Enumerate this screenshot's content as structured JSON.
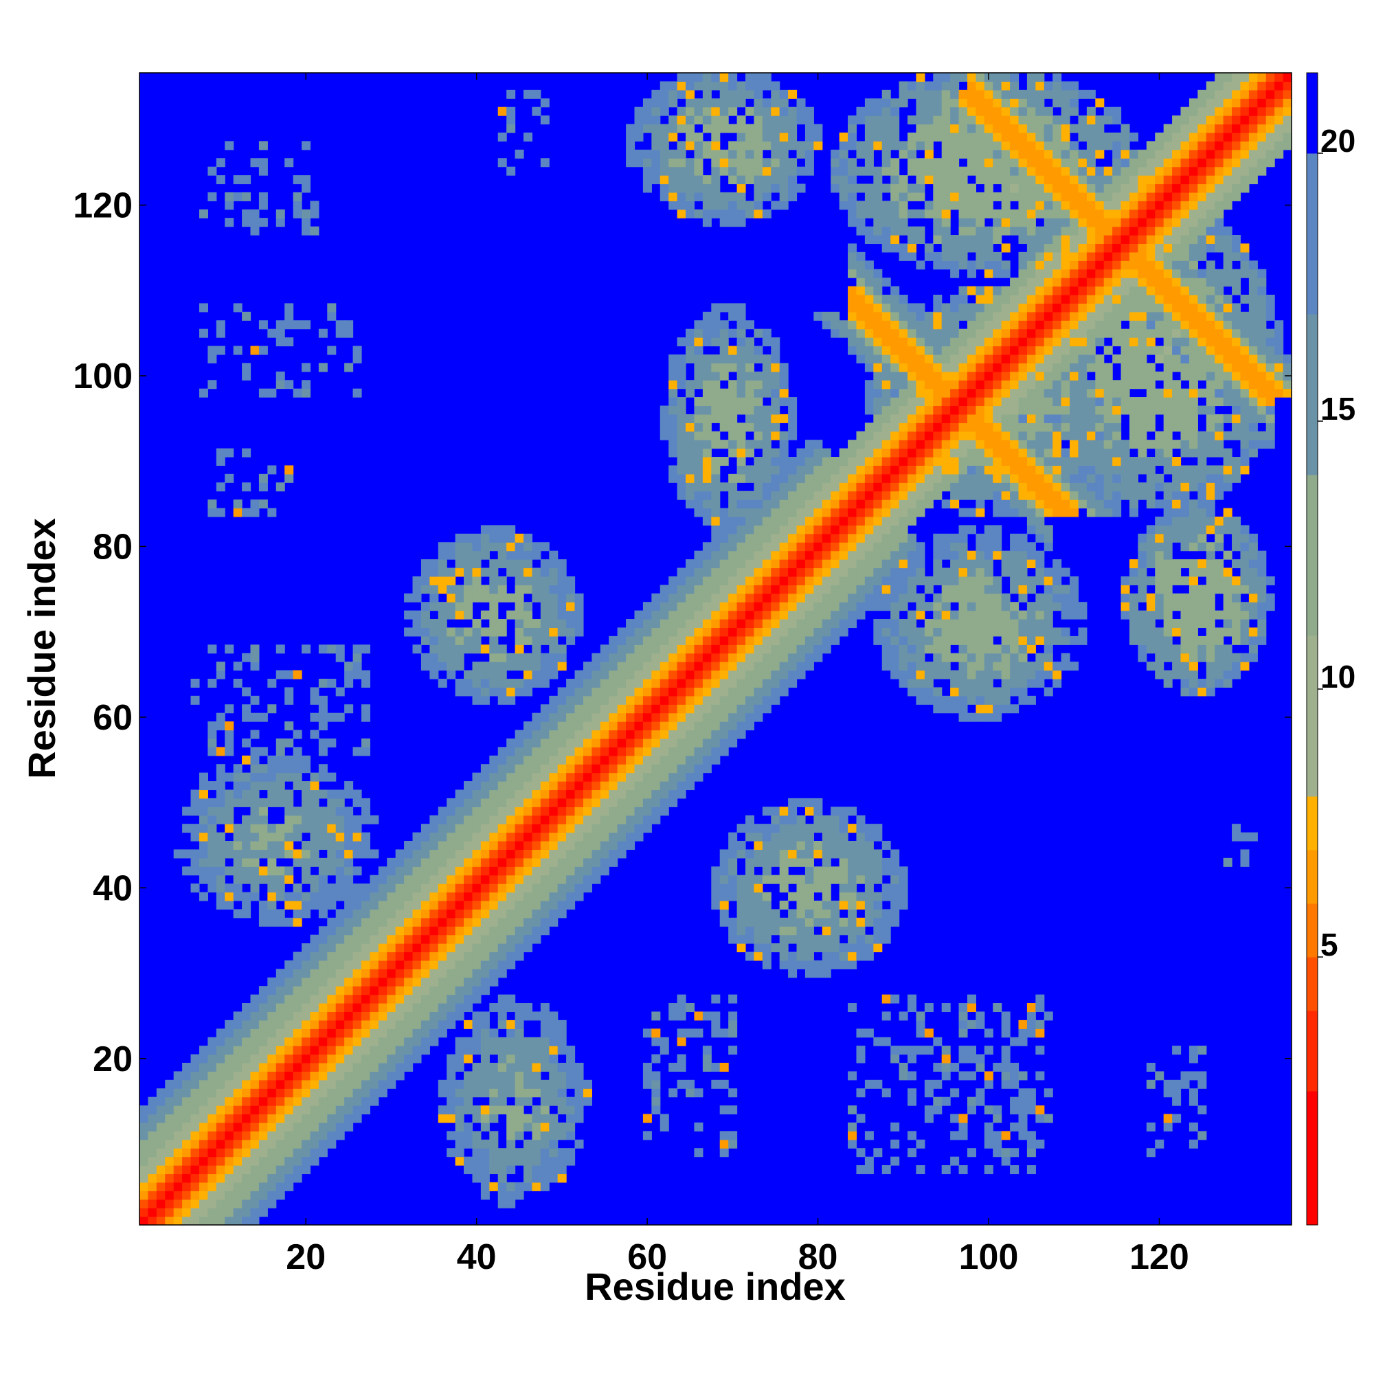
{
  "chart_data": {
    "type": "heatmap",
    "title": "",
    "xlabel": "Residue index",
    "ylabel": "Residue index",
    "n_residues": 135,
    "xlim": [
      0.5,
      135.5
    ],
    "ylim": [
      0.5,
      135.5
    ],
    "x_ticks": [
      20,
      40,
      60,
      80,
      100,
      120
    ],
    "y_ticks": [
      20,
      40,
      60,
      80,
      100,
      120
    ],
    "colorbar": {
      "ticks": [
        5,
        10,
        15,
        20
      ],
      "range": [
        0,
        21.5
      ],
      "levels": [
        {
          "max": 2.5,
          "color": "#ff0000"
        },
        {
          "max": 4.0,
          "color": "#ff2a00"
        },
        {
          "max": 5.0,
          "color": "#ff5000"
        },
        {
          "max": 6.0,
          "color": "#ff7800"
        },
        {
          "max": 7.0,
          "color": "#ff9a00"
        },
        {
          "max": 8.0,
          "color": "#ffb000"
        },
        {
          "max": 11.0,
          "color": "#9fb08e"
        },
        {
          "max": 14.0,
          "color": "#8fab8c"
        },
        {
          "max": 17.0,
          "color": "#6b93a8"
        },
        {
          "max": 20.0,
          "color": "#5b86c2"
        },
        {
          "max": 99.0,
          "color": "#0000ff"
        }
      ]
    },
    "background_value": 21,
    "diagonal_band": {
      "profile": [
        1.5,
        3.5,
        5.0,
        6.5,
        7.5,
        8.5,
        10.0,
        11.5,
        13.0,
        14.0,
        15.5,
        17.0,
        18.5,
        19.5
      ],
      "wide_ranges": [
        [
          1,
          86
        ]
      ],
      "narrow_ranges": [
        [
          86,
          135
        ]
      ]
    },
    "contact_regions": [
      {
        "i": [
          36,
          53
        ],
        "j": [
          3,
          27
        ],
        "value": 15
      },
      {
        "i": [
          5,
          28
        ],
        "j": [
          36,
          56
        ],
        "value": 15
      },
      {
        "i": [
          32,
          52
        ],
        "j": [
          62,
          82
        ],
        "value": 14
      },
      {
        "i": [
          68,
          90
        ],
        "j": [
          30,
          50
        ],
        "value": 14
      },
      {
        "i": [
          62,
          77
        ],
        "j": [
          82,
          108
        ],
        "value": 14
      },
      {
        "i": [
          87,
          111
        ],
        "j": [
          60,
          82
        ],
        "value": 14
      },
      {
        "i": [
          116,
          133
        ],
        "j": [
          63,
          85
        ],
        "value": 13
      },
      {
        "i": [
          86,
          114
        ],
        "j": [
          84,
          110
        ],
        "value": 13
      },
      {
        "i": [
          106,
          134
        ],
        "j": [
          84,
          120
        ],
        "value": 13
      },
      {
        "i": [
          82,
          118
        ],
        "j": [
          112,
          136
        ],
        "value": 13
      },
      {
        "i": [
          58,
          80
        ],
        "j": [
          118,
          136
        ],
        "value": 14
      }
    ],
    "antiparallel_strands": [
      {
        "sum": 193,
        "i_from": 84,
        "i_to": 107,
        "core": 6
      },
      {
        "sum": 231,
        "i_from": 98,
        "i_to": 133,
        "core": 6
      }
    ],
    "sparse_patches": [
      {
        "i": [
          8,
          21
        ],
        "j": [
          117,
          127
        ]
      },
      {
        "i": [
          8,
          26
        ],
        "j": [
          98,
          108
        ]
      },
      {
        "i": [
          9,
          18
        ],
        "j": [
          84,
          91
        ]
      },
      {
        "i": [
          7,
          27
        ],
        "j": [
          56,
          68
        ]
      },
      {
        "i": [
          60,
          70
        ],
        "j": [
          9,
          27
        ]
      },
      {
        "i": [
          84,
          106
        ],
        "j": [
          7,
          27
        ]
      },
      {
        "i": [
          100,
          107
        ],
        "j": [
          9,
          26
        ]
      },
      {
        "i": [
          119,
          125
        ],
        "j": [
          9,
          21
        ]
      },
      {
        "i": [
          127,
          131
        ],
        "j": [
          43,
          47
        ]
      },
      {
        "i": [
          43,
          48
        ],
        "j": [
          124,
          133
        ]
      }
    ]
  }
}
